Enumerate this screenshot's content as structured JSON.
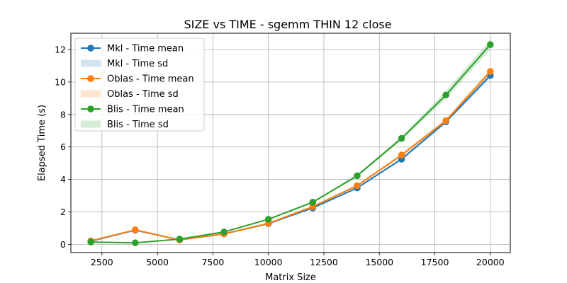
{
  "chart_data": {
    "type": "line",
    "title": "SIZE vs TIME - sgemm  THIN 12 close",
    "xlabel": "Matrix Size",
    "ylabel": "Elapsed Time (s)",
    "xlim": [
      1100,
      20900
    ],
    "ylim": [
      -0.5,
      13.0
    ],
    "xticks": [
      2500,
      5000,
      7500,
      10000,
      12500,
      15000,
      17500,
      20000
    ],
    "yticks": [
      0,
      2,
      4,
      6,
      8,
      10,
      12
    ],
    "grid": true,
    "legend_position": "top-left",
    "x": [
      2000,
      4000,
      6000,
      8000,
      10000,
      12000,
      14000,
      16000,
      18000,
      20000
    ],
    "series": [
      {
        "name": "Mkl - Time mean",
        "sd_name": "Mkl - Time sd",
        "color": "#1f77b4",
        "values": [
          0.2,
          0.88,
          0.28,
          0.65,
          1.28,
          2.25,
          3.48,
          5.25,
          7.55,
          10.4
        ],
        "sd": [
          0.02,
          0.02,
          0.02,
          0.03,
          0.04,
          0.05,
          0.06,
          0.08,
          0.1,
          0.15
        ]
      },
      {
        "name": "Oblas - Time mean",
        "sd_name": "Oblas - Time sd",
        "color": "#ff7f0e",
        "values": [
          0.22,
          0.9,
          0.28,
          0.65,
          1.3,
          2.33,
          3.62,
          5.5,
          7.62,
          10.65
        ],
        "sd": [
          0.02,
          0.02,
          0.02,
          0.03,
          0.04,
          0.05,
          0.07,
          0.1,
          0.12,
          0.15
        ]
      },
      {
        "name": "Blis - Time mean",
        "sd_name": "Blis - Time sd",
        "color": "#2ca02c",
        "values": [
          0.15,
          0.1,
          0.33,
          0.77,
          1.55,
          2.6,
          4.23,
          6.53,
          9.2,
          12.3
        ],
        "sd": [
          0.02,
          0.02,
          0.02,
          0.03,
          0.04,
          0.06,
          0.08,
          0.12,
          0.25,
          0.3
        ]
      }
    ]
  }
}
